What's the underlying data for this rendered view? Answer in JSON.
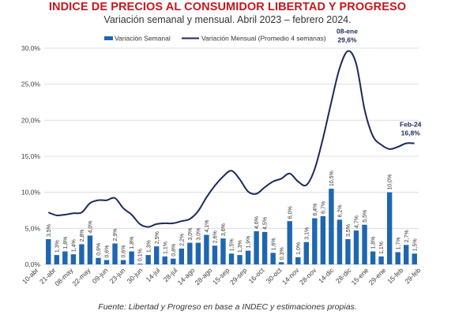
{
  "chart_data": {
    "type": "bar",
    "title": "INDICE DE PRECIOS AL CONSUMIDOR LIBERTAD Y PROGRESO",
    "subtitle": "Variación semanal y mensual. Abril 2023 – febrero 2024.",
    "source": "Fuente: Libertad y Progreso en base a INDEC y estimaciones propias.",
    "ylim": [
      0,
      30
    ],
    "yticks": [
      "0,0%",
      "5,0%",
      "10,0%",
      "15,0%",
      "20,0%",
      "25,0%",
      "30,0%"
    ],
    "grid": true,
    "legend_position": "top",
    "colors": {
      "bar": "#1f66b0",
      "line": "#1b2a5c",
      "title": "#c8161d"
    },
    "x_tick_labels": [
      "10-abr",
      "21-abr",
      "08-may",
      "22-may",
      "09-jun",
      "23-jun",
      "30-jun",
      "14-jul",
      "28-jul",
      "14-ago",
      "28-ago",
      "15-sep",
      "29-sep",
      "16-oct",
      "30-oct",
      "14-nov",
      "28-nov",
      "14-dic",
      "28-dic",
      "15-ene",
      "29-ene",
      "15-feb",
      "29-feb"
    ],
    "series": [
      {
        "name": "Variación Semanal",
        "type": "bar",
        "values": [
          3.5,
          1.3,
          1.8,
          1.4,
          2.8,
          4.0,
          0.9,
          0.6,
          2.9,
          0.6,
          1.8,
          0.1,
          1.3,
          2.5,
          1.1,
          0.8,
          2.2,
          3.0,
          3.0,
          4.1,
          2.6,
          3.6,
          1.5,
          1.3,
          1.9,
          4.6,
          4.5,
          1.6,
          0.3,
          6.0,
          1.0,
          3.1,
          6.4,
          6.7,
          10.5,
          6.2,
          3.5,
          4.7,
          5.5,
          1.8,
          1.1,
          10.0,
          1.7,
          2.7,
          1.5
        ],
        "labels": [
          "3,5%",
          "1,3%",
          "1,8%",
          "1,4%",
          "2,8%",
          "4,0%",
          "0,9%",
          "0,6%",
          "2,9%",
          "0,6%",
          "1,8%",
          "0,1%",
          "1,3%",
          "2,5%",
          "1,1%",
          "0,8%",
          "2,2%",
          "3,0%",
          "3,0%",
          "4,1%",
          "2,6%",
          "3,6%",
          "1,5%",
          "1,3%",
          "1,9%",
          "4,6%",
          "4,5%",
          "1,6%",
          "0,3%",
          "6,0%",
          "1,0%",
          "3,1%",
          "6,4%",
          "6,7%",
          "10,5%",
          "6,2%",
          "3,5%",
          "4,7%",
          "5,5%",
          "1,8%",
          "1,1%",
          "10,0%",
          "1,7%",
          "2,7%",
          "1,5%"
        ]
      },
      {
        "name": "Variación Mensual (Promedio 4 semanas)",
        "type": "line",
        "values": [
          7.2,
          6.8,
          6.9,
          7.1,
          7.2,
          8.5,
          8.9,
          8.9,
          9.2,
          7.8,
          6.9,
          5.6,
          5.2,
          5.6,
          5.7,
          5.7,
          6.0,
          6.3,
          7.4,
          9.3,
          10.9,
          12.2,
          13.0,
          11.8,
          10.1,
          9.8,
          10.7,
          11.5,
          11.9,
          12.6,
          11.5,
          11.0,
          13.2,
          17.5,
          22.5,
          27.2,
          29.6,
          27.8,
          21.5,
          17.8,
          16.6,
          16.0,
          16.3,
          16.8,
          16.8
        ],
        "annotations": [
          {
            "label": "08-ene",
            "value_text": "29,6%",
            "index": 36
          },
          {
            "label": "Feb-24",
            "value_text": "16,8%",
            "index": 44
          }
        ]
      }
    ]
  }
}
